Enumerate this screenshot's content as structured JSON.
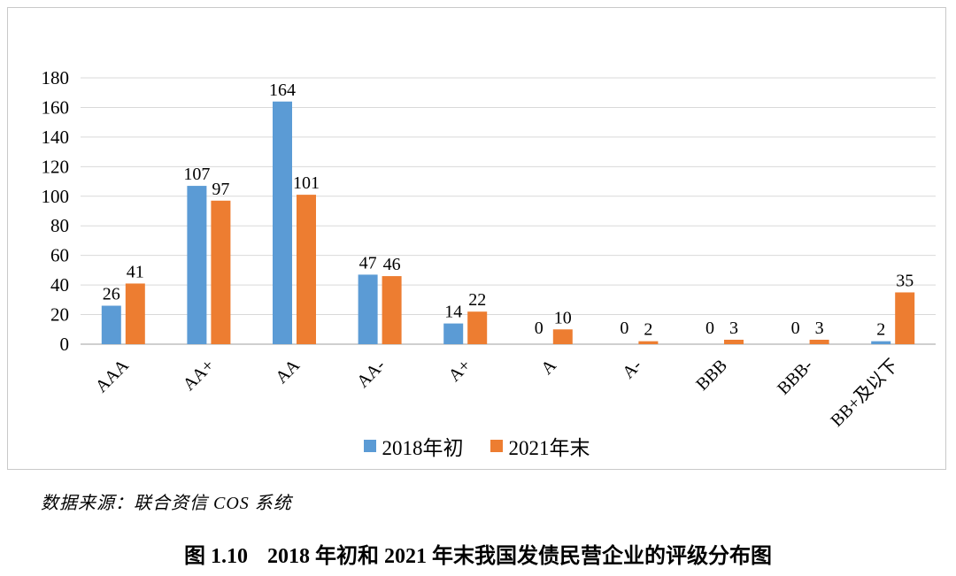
{
  "chart_data": {
    "type": "bar",
    "title": "",
    "categories": [
      "AAA",
      "AA+",
      "AA",
      "AA-",
      "A+",
      "A",
      "A-",
      "BBB",
      "BBB-",
      "BB+及以下"
    ],
    "series": [
      {
        "name": "2018年初",
        "color": "#5B9BD5",
        "values": [
          26,
          107,
          164,
          47,
          14,
          0,
          0,
          0,
          0,
          2
        ]
      },
      {
        "name": "2021年末",
        "color": "#ED7D31",
        "values": [
          41,
          97,
          101,
          46,
          22,
          10,
          2,
          3,
          3,
          35
        ]
      }
    ],
    "xlabel": "",
    "ylabel": "",
    "ylim": [
      0,
      180
    ],
    "ytick_step": 20,
    "yticks": [
      0,
      20,
      40,
      60,
      80,
      100,
      120,
      140,
      160,
      180
    ],
    "grid": true,
    "data_labels": true,
    "legend_position": "bottom",
    "x_label_rotation_deg": -45,
    "gridline_color": "#D9D9D9",
    "axis_line_color": "#BFBFBF"
  },
  "legend": {
    "items": [
      {
        "label": "2018年初",
        "color": "#5B9BD5"
      },
      {
        "label": "2021年末",
        "color": "#ED7D31"
      }
    ]
  },
  "source": {
    "text": "数据来源：联合资信 COS 系统"
  },
  "caption": {
    "label": "图 1.10",
    "text": "2018 年初和 2021 年末我国发债民营企业的评级分布图"
  }
}
